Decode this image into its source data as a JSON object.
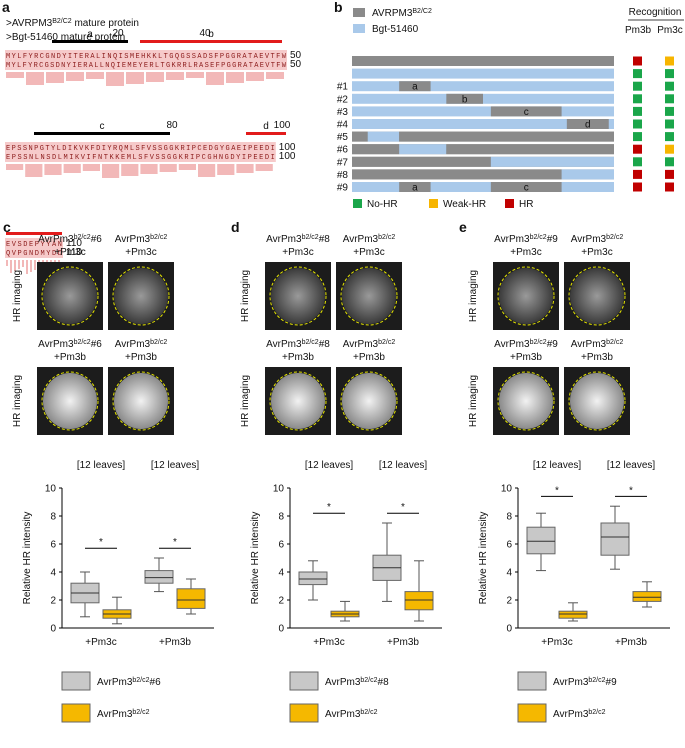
{
  "panel_a": {
    "label": "a",
    "headers": [
      {
        "base": ">AVRPM3",
        "sup": "B2/C2",
        "suffix": " mature protein"
      },
      {
        "base": ">Bgt-51460 mature protein"
      }
    ],
    "blocks": [
      {
        "seq1": "MYLFYRCGNDYITERALINQISMEHKKLTGQGSSADSFPGGRATAEVTFW",
        "seq2": "MYLFYRCGSDNYIERALLNQIEMEYERLTGKRRLRASEFPGGRATAEVTFW",
        "end": 50
      },
      {
        "seq1": "EPSSNPGTYLDIKVKFDIYRQMLSFVSSGGKRIPCEDGYGAEIPEEDI",
        "seq2": "EPSSNLNSDLMIKVIFNTKKEMLSFVSSGGKRIPCGHNGDYIPEEDI",
        "end": 100
      },
      {
        "seq1": "EVSDEPYYAN",
        "seq2": "QVPGNDMYDD",
        "end": 110
      }
    ],
    "domains": [
      "a",
      "b",
      "c",
      "d"
    ],
    "positions": [
      20,
      40,
      80,
      100
    ]
  },
  "panel_b": {
    "label": "b",
    "legend": [
      {
        "base": "AVRPM3",
        "sup": "B2/C2",
        "color": "#8a8a8a"
      },
      {
        "base": "Bgt-51460",
        "color": "#a9c9ea"
      }
    ],
    "recognition_title": "Recognition",
    "columns": [
      "Pm3b",
      "Pm3c"
    ],
    "calls": [
      {
        "label": "No-HR",
        "color": "#1aa64a"
      },
      {
        "label": "Weak-HR",
        "color": "#f7b500"
      },
      {
        "label": "HR",
        "color": "#c00000"
      }
    ],
    "rows": [
      {
        "calls": [
          "HR",
          "Weak-HR"
        ]
      },
      {
        "calls": [
          "No-HR",
          "No-HR"
        ]
      },
      {
        "name": "#1",
        "segments": [
          "a"
        ],
        "calls": [
          "No-HR",
          "No-HR"
        ]
      },
      {
        "name": "#2",
        "segments": [
          "b"
        ],
        "calls": [
          "No-HR",
          "No-HR"
        ]
      },
      {
        "name": "#3",
        "segments": [
          "c"
        ],
        "calls": [
          "No-HR",
          "No-HR"
        ]
      },
      {
        "name": "#4",
        "segments": [
          "d"
        ],
        "calls": [
          "No-HR",
          "No-HR"
        ]
      },
      {
        "name": "#5",
        "calls": [
          "No-HR",
          "No-HR"
        ]
      },
      {
        "name": "#6",
        "calls": [
          "HR",
          "Weak-HR"
        ]
      },
      {
        "name": "#7",
        "calls": [
          "No-HR",
          "No-HR"
        ]
      },
      {
        "name": "#8",
        "calls": [
          "HR",
          "HR"
        ]
      },
      {
        "name": "#9",
        "segments": [
          "a",
          "c"
        ],
        "calls": [
          "HR",
          "HR"
        ]
      }
    ]
  },
  "chart_data": [
    {
      "type": "box",
      "label": "c",
      "image_axis_label": "HR imaging",
      "images": [
        {
          "base": "AvrPm3",
          "sup": "b2/c2",
          "suffix": "#6",
          "line2": "+Pm3c"
        },
        {
          "base": "AvrPm3",
          "sup": "b2/c2",
          "line2": "+Pm3c"
        },
        {
          "base": "AvrPm3",
          "sup": "b2/c2",
          "suffix": "#6",
          "line2": "+Pm3b"
        },
        {
          "base": "AvrPm3",
          "sup": "b2/c2",
          "line2": "+Pm3b"
        }
      ],
      "ylabel": "Relative HR intensity",
      "ylim": [
        0,
        10
      ],
      "yticks": [
        0,
        2,
        4,
        6,
        8,
        10
      ],
      "categories": [
        "+Pm3c",
        "+Pm3b"
      ],
      "annotations": [
        "[12 leaves]",
        "[12 leaves]"
      ],
      "significance": [
        "*",
        "*"
      ],
      "series": [
        {
          "name": {
            "base": "AvrPm3",
            "sup": "b2/c2",
            "suffix": "#6"
          },
          "color": "#c8c8c8",
          "stats": [
            {
              "min": 0.8,
              "q1": 1.8,
              "median": 2.5,
              "q3": 3.2,
              "max": 4.0
            },
            {
              "min": 2.6,
              "q1": 3.2,
              "median": 3.6,
              "q3": 4.1,
              "max": 5.0
            }
          ]
        },
        {
          "name": {
            "base": "AvrPm3",
            "sup": "b2/c2"
          },
          "color": "#f5b800",
          "stats": [
            {
              "min": 0.3,
              "q1": 0.7,
              "median": 1.0,
              "q3": 1.3,
              "max": 2.2
            },
            {
              "min": 1.0,
              "q1": 1.4,
              "median": 2.0,
              "q3": 2.8,
              "max": 3.5
            }
          ]
        }
      ]
    },
    {
      "type": "box",
      "label": "d",
      "image_axis_label": "HR imaging",
      "images": [
        {
          "base": "AvrPm3",
          "sup": "b2/c2",
          "suffix": "#8",
          "line2": "+Pm3c"
        },
        {
          "base": "AvrPm3",
          "sup": "b2/c2",
          "line2": "+Pm3c"
        },
        {
          "base": "AvrPm3",
          "sup": "b2/c2",
          "suffix": "#8",
          "line2": "+Pm3b"
        },
        {
          "base": "AvrPm3",
          "sup": "b2/c2",
          "line2": "+Pm3b"
        }
      ],
      "ylabel": "Relative HR intensity",
      "ylim": [
        0,
        10
      ],
      "yticks": [
        0,
        2,
        4,
        6,
        8,
        10
      ],
      "categories": [
        "+Pm3c",
        "+Pm3b"
      ],
      "annotations": [
        "[12 leaves]",
        "[12 leaves]"
      ],
      "significance": [
        "*",
        "*"
      ],
      "series": [
        {
          "name": {
            "base": "AvrPm3",
            "sup": "b2/c2",
            "suffix": "#8"
          },
          "color": "#c8c8c8",
          "stats": [
            {
              "min": 2.0,
              "q1": 3.1,
              "median": 3.5,
              "q3": 4.0,
              "max": 4.8
            },
            {
              "min": 1.9,
              "q1": 3.4,
              "median": 4.3,
              "q3": 5.2,
              "max": 7.5
            }
          ]
        },
        {
          "name": {
            "base": "AvrPm3",
            "sup": "b2/c2"
          },
          "color": "#f5b800",
          "stats": [
            {
              "min": 0.5,
              "q1": 0.8,
              "median": 1.0,
              "q3": 1.2,
              "max": 1.9
            },
            {
              "min": 0.5,
              "q1": 1.3,
              "median": 2.0,
              "q3": 2.6,
              "max": 4.8
            }
          ]
        }
      ]
    },
    {
      "type": "box",
      "label": "e",
      "image_axis_label": "HR imaging",
      "images": [
        {
          "base": "AvrPm3",
          "sup": "b2/c2",
          "suffix": "#9",
          "line2": "+Pm3c"
        },
        {
          "base": "AvrPm3",
          "sup": "b2/c2",
          "line2": "+Pm3c"
        },
        {
          "base": "AvrPm3",
          "sup": "b2/c2",
          "suffix": "#9",
          "line2": "+Pm3b"
        },
        {
          "base": "AvrPm3",
          "sup": "b2/c2",
          "line2": "+Pm3b"
        }
      ],
      "ylabel": "Relative HR intensity",
      "ylim": [
        0,
        10
      ],
      "yticks": [
        0,
        2,
        4,
        6,
        8,
        10
      ],
      "categories": [
        "+Pm3c",
        "+Pm3b"
      ],
      "annotations": [
        "[12 leaves]",
        "[12 leaves]"
      ],
      "significance": [
        "*",
        "*"
      ],
      "series": [
        {
          "name": {
            "base": "AvrPm3",
            "sup": "b2/c2",
            "suffix": "#9"
          },
          "color": "#c8c8c8",
          "stats": [
            {
              "min": 4.1,
              "q1": 5.3,
              "median": 6.2,
              "q3": 7.2,
              "max": 8.2
            },
            {
              "min": 4.2,
              "q1": 5.2,
              "median": 6.5,
              "q3": 7.5,
              "max": 8.7
            }
          ]
        },
        {
          "name": {
            "base": "AvrPm3",
            "sup": "b2/c2"
          },
          "color": "#f5b800",
          "stats": [
            {
              "min": 0.5,
              "q1": 0.7,
              "median": 1.0,
              "q3": 1.2,
              "max": 1.8
            },
            {
              "min": 1.5,
              "q1": 1.9,
              "median": 2.2,
              "q3": 2.6,
              "max": 3.3
            }
          ]
        }
      ]
    }
  ]
}
